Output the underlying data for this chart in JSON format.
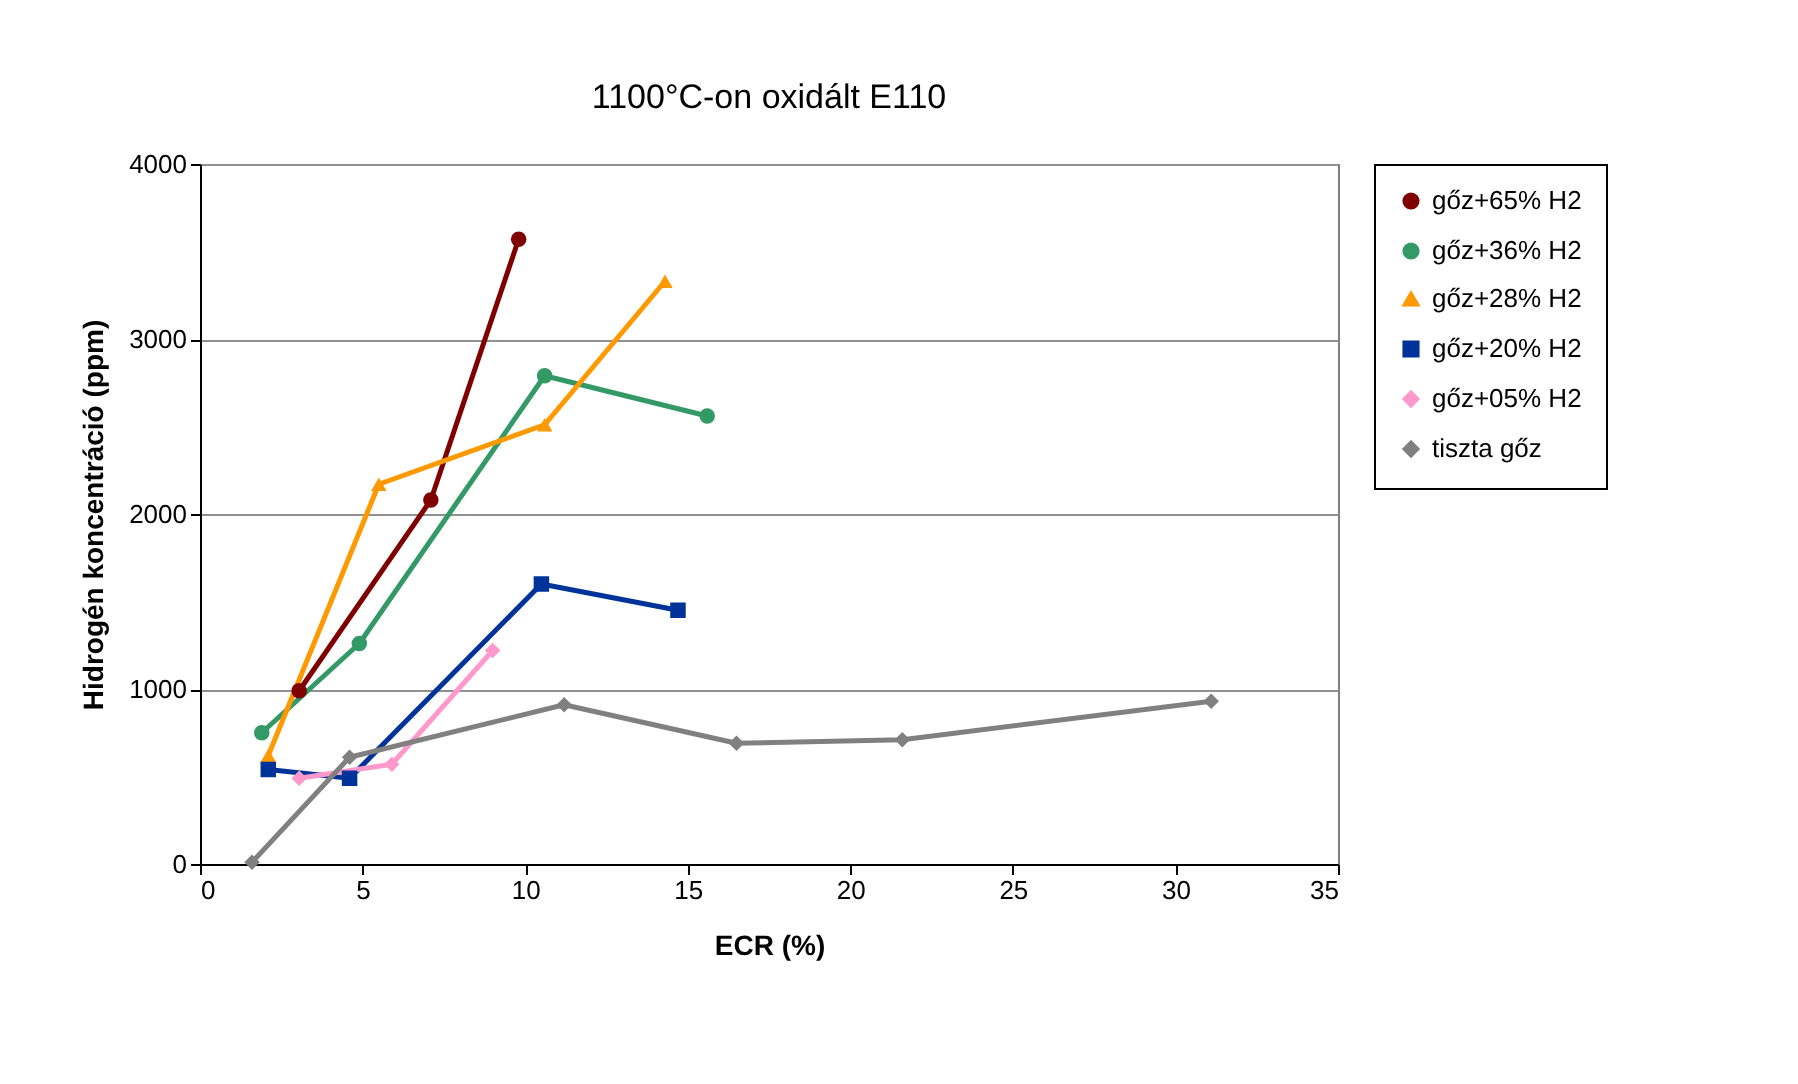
{
  "chart_data": {
    "type": "line",
    "title": "1100°C-on oxidált E110",
    "xlabel": "ECR (%)",
    "ylabel": "Hidrogén koncentráció (ppm)",
    "xlim": [
      0,
      35
    ],
    "xticks": [
      0,
      5,
      10,
      15,
      20,
      25,
      30,
      35
    ],
    "ylim": [
      0,
      4000
    ],
    "yticks": [
      0,
      1000,
      2000,
      3000,
      4000
    ],
    "grid": "y",
    "legend": "right",
    "series": [
      {
        "name": "gőz+65% H2",
        "color": "#800000",
        "marker": "circle",
        "x": [
          3.05,
          7.1,
          9.8
        ],
        "values": [
          990,
          2080,
          3570
        ]
      },
      {
        "name": "gőz+36% H2",
        "color": "#339966",
        "marker": "circle",
        "x": [
          1.9,
          4.9,
          10.6,
          15.6
        ],
        "values": [
          750,
          1260,
          2790,
          2560
        ]
      },
      {
        "name": "gőz+28% H2",
        "color": "#ff9900",
        "marker": "triangle",
        "x": [
          2.1,
          5.5,
          10.6,
          14.3
        ],
        "values": [
          620,
          2170,
          2510,
          3330
        ]
      },
      {
        "name": "gőz+20% H2",
        "color": "#003399",
        "marker": "square",
        "x": [
          2.1,
          4.6,
          10.5,
          14.7
        ],
        "values": [
          540,
          490,
          1600,
          1450
        ]
      },
      {
        "name": "gőz+05% H2",
        "color": "#ff99cc",
        "marker": "diamond",
        "x": [
          3.05,
          5.9,
          9.0
        ],
        "values": [
          490,
          570,
          1220
        ]
      },
      {
        "name": "tiszta gőz",
        "color": "#808080",
        "marker": "diamond",
        "x": [
          1.6,
          4.6,
          11.2,
          16.5,
          21.6,
          31.1
        ],
        "values": [
          10,
          610,
          910,
          690,
          710,
          930
        ]
      }
    ]
  }
}
